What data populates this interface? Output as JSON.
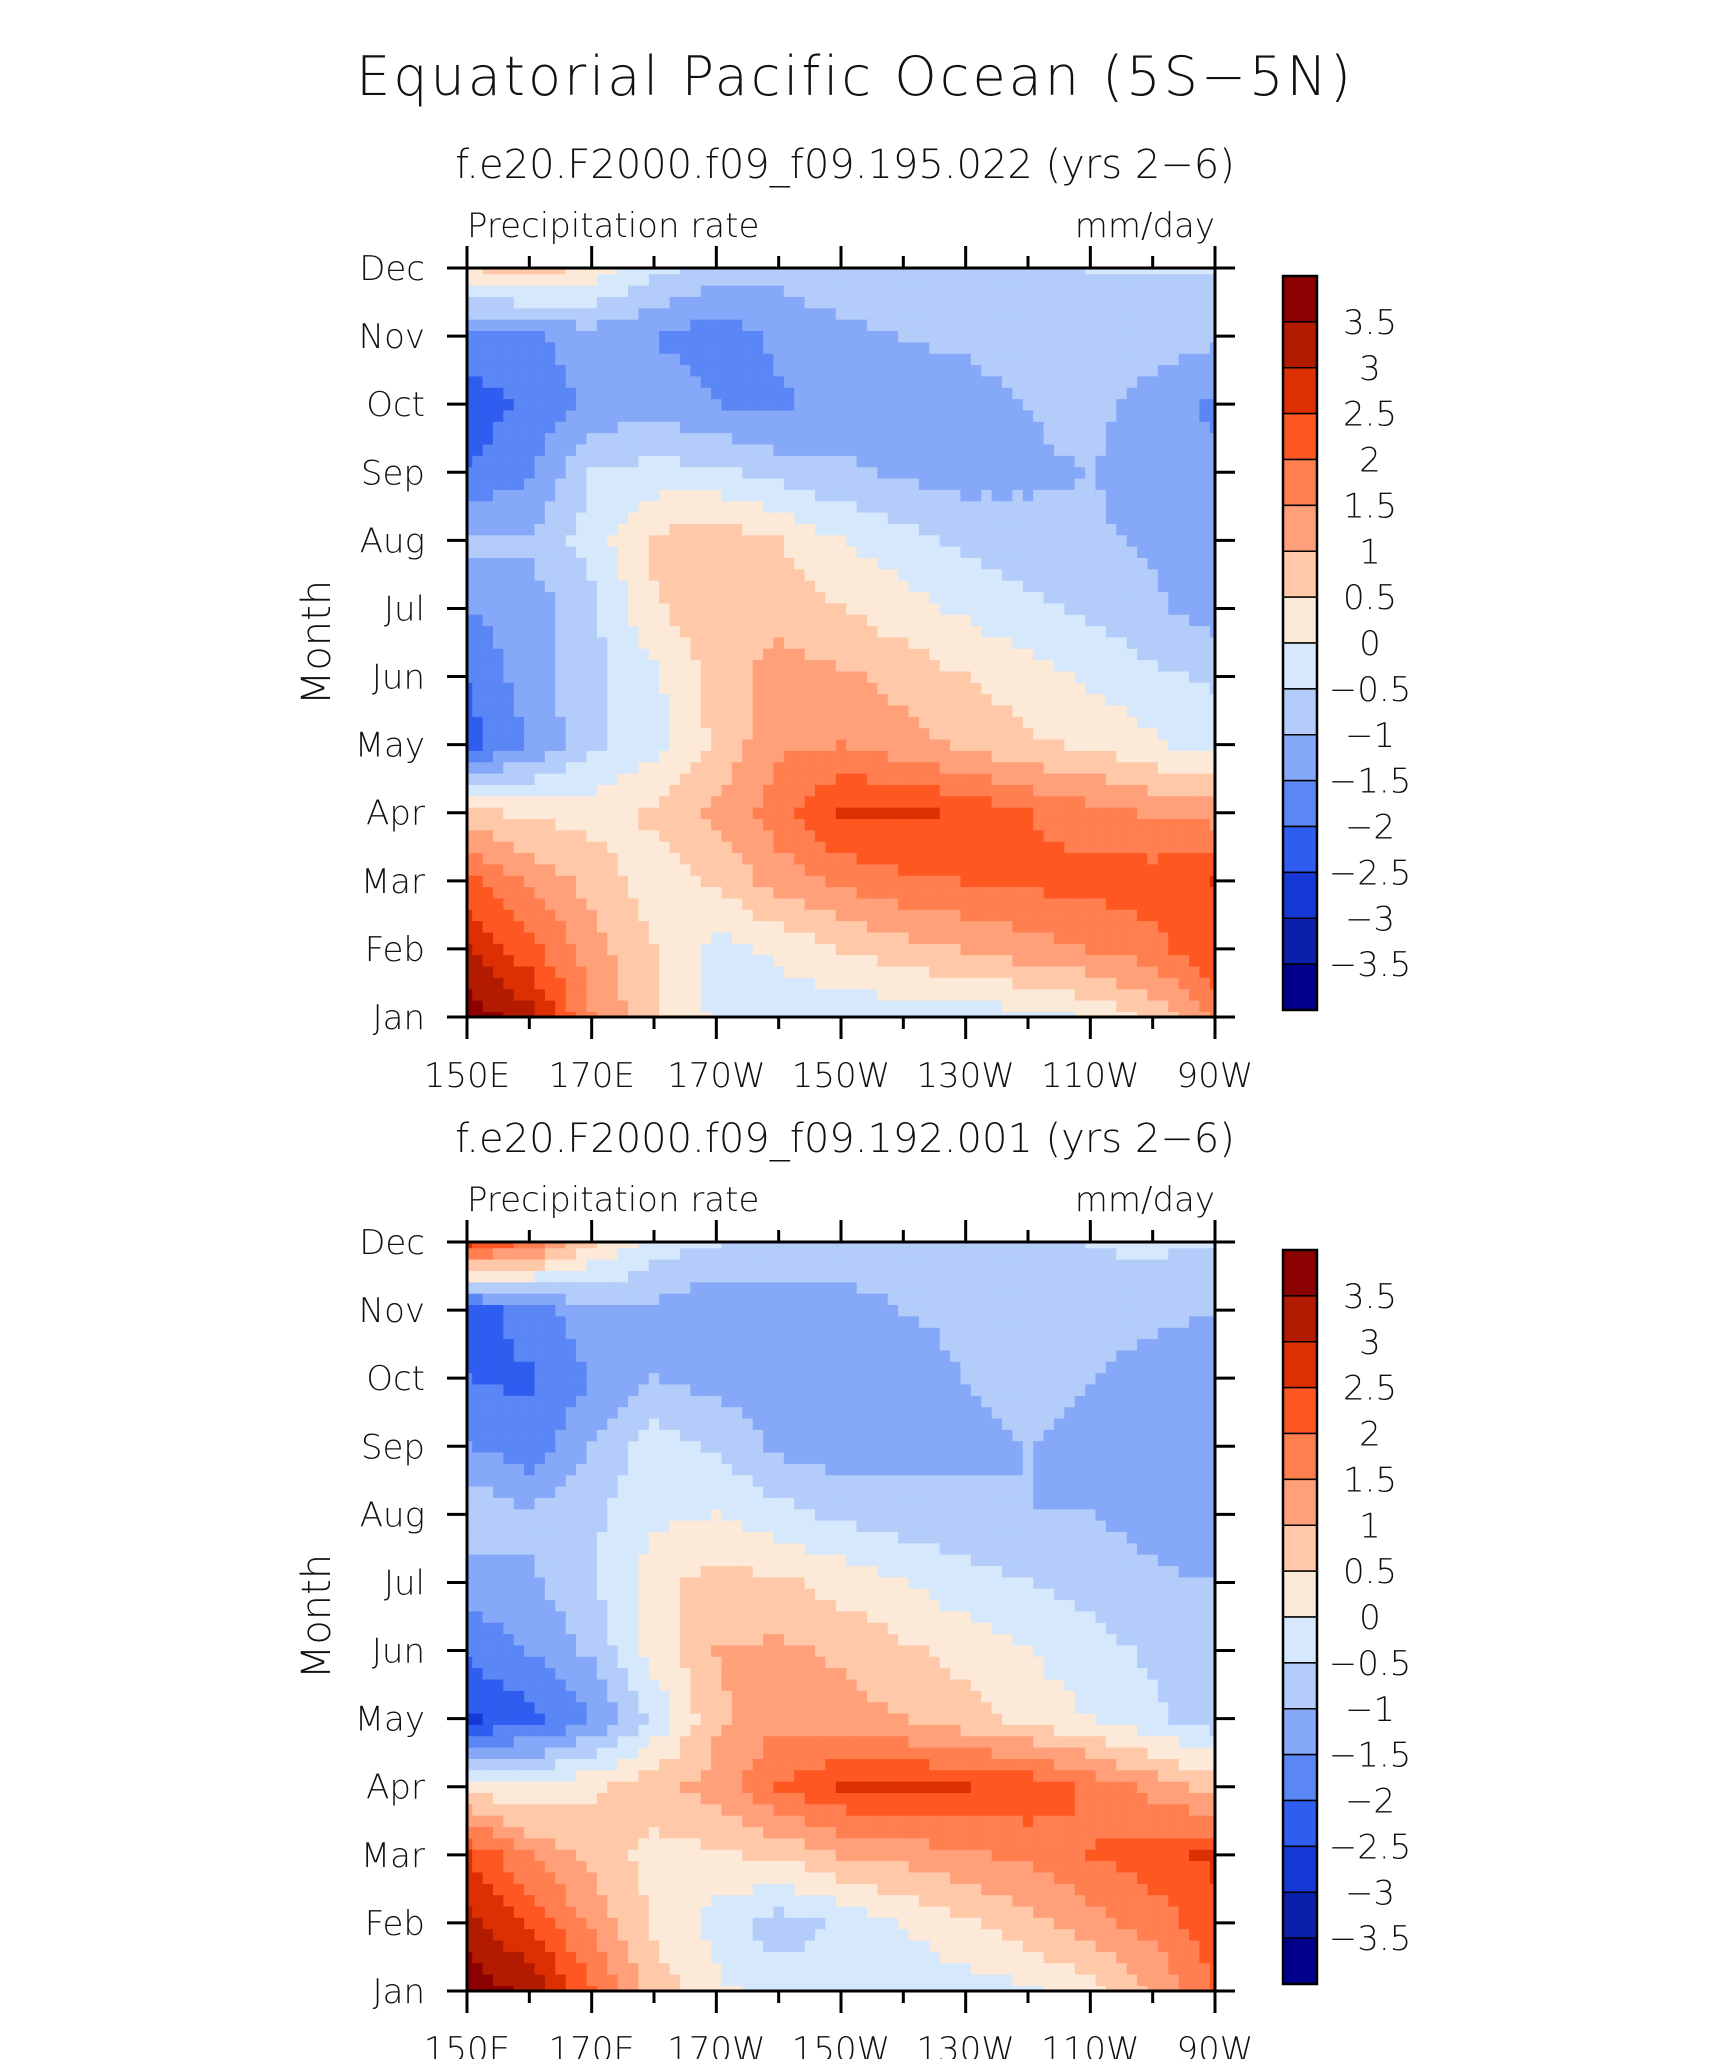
{
  "figure": {
    "title": "Equatorial Pacific Ocean (5S−5N)"
  },
  "colorbar": {
    "levels": [
      3.5,
      3,
      2.5,
      2,
      1.5,
      1,
      0.5,
      0,
      -0.5,
      -1,
      -1.5,
      -2,
      -2.5,
      -3,
      -3.5
    ],
    "labels": [
      "3.5",
      "3",
      "2.5",
      "2",
      "1.5",
      "1",
      "0.5",
      "0",
      "−0.5",
      "−1",
      "−1.5",
      "−2",
      "−2.5",
      "−3",
      "−3.5"
    ],
    "colors": [
      "#8b0000",
      "#b31b00",
      "#dc2f02",
      "#ff5722",
      "#ff7f50",
      "#ffa07a",
      "#ffc8a8",
      "#fde9d8",
      "#d6e8fb",
      "#b3ccfa",
      "#86a8f8",
      "#5b86f5",
      "#2f5df0",
      "#1638d6",
      "#0a20aa",
      "#00008b"
    ]
  },
  "chart_data": [
    {
      "type": "heatmap",
      "subtitle": "f.e20.F2000.f09_f09.195.022 (yrs 2−6)",
      "left_label": "Precipitation rate",
      "right_label": "mm/day",
      "ylabel": "Month",
      "x_ticks": [
        "150E",
        "170E",
        "170W",
        "150W",
        "130W",
        "110W",
        "90W"
      ],
      "y_ticks": [
        "Jan",
        "Feb",
        "Mar",
        "Apr",
        "May",
        "Jun",
        "Jul",
        "Aug",
        "Sep",
        "Oct",
        "Nov",
        "Dec"
      ],
      "x_range": [
        150,
        270
      ],
      "x_columns": [
        150,
        160,
        170,
        180,
        190,
        200,
        210,
        220,
        230,
        240,
        250,
        260,
        270
      ],
      "rows": [
        [
          3.8,
          3.2,
          1.5,
          0.6,
          -0.1,
          -0.3,
          -0.4,
          -0.3,
          -0.3,
          -0.2,
          0.1,
          0.6,
          1.6
        ],
        [
          3.0,
          2.2,
          1.2,
          0.5,
          -0.2,
          0.1,
          0.5,
          0.8,
          1.0,
          1.3,
          1.5,
          1.8,
          2.4
        ],
        [
          2.2,
          1.4,
          0.8,
          0.2,
          0.6,
          1.2,
          1.6,
          1.9,
          2.0,
          2.1,
          2.2,
          2.3,
          2.5
        ],
        [
          0.6,
          0.4,
          0.3,
          0.6,
          1.1,
          1.8,
          2.6,
          2.6,
          2.4,
          2.0,
          1.7,
          1.4,
          1.3
        ],
        [
          -2.2,
          -1.5,
          -0.6,
          -0.2,
          0.6,
          1.4,
          1.5,
          1.2,
          0.9,
          0.6,
          0.4,
          0.1,
          -0.2
        ],
        [
          -2.0,
          -1.2,
          -0.7,
          -0.1,
          0.7,
          1.2,
          1.1,
          0.8,
          0.5,
          0.2,
          -0.1,
          -0.4,
          -0.6
        ],
        [
          -1.5,
          -1.3,
          -0.6,
          0.4,
          0.9,
          0.8,
          0.5,
          0.2,
          -0.1,
          -0.4,
          -0.6,
          -0.9,
          -1.2
        ],
        [
          -0.8,
          -0.9,
          -0.3,
          0.6,
          0.9,
          0.5,
          0.0,
          -0.3,
          -0.6,
          -0.8,
          -0.9,
          -1.1,
          -1.3
        ],
        [
          -2.0,
          -1.6,
          -0.5,
          -0.3,
          -0.4,
          -0.7,
          -0.9,
          -1.1,
          -1.2,
          -1.1,
          -1.0,
          -1.2,
          -1.4
        ],
        [
          -2.3,
          -1.9,
          -1.4,
          -1.2,
          -1.5,
          -1.6,
          -1.3,
          -1.2,
          -1.2,
          -1.0,
          -0.8,
          -1.3,
          -1.6
        ],
        [
          -1.6,
          -1.6,
          -1.2,
          -1.5,
          -1.8,
          -1.4,
          -1.1,
          -1.0,
          -0.9,
          -0.8,
          -0.6,
          -0.7,
          -0.9
        ],
        [
          0.4,
          0.7,
          0.3,
          -0.4,
          -0.7,
          -0.8,
          -0.7,
          -0.6,
          -0.6,
          -0.6,
          -0.5,
          -0.5,
          -0.5
        ]
      ]
    },
    {
      "type": "heatmap",
      "subtitle": "f.e20.F2000.f09_f09.192.001 (yrs 2−6)",
      "left_label": "Precipitation rate",
      "right_label": "mm/day",
      "ylabel": "Month",
      "x_ticks": [
        "150E",
        "170E",
        "170W",
        "150W",
        "130W",
        "110W",
        "90W"
      ],
      "y_ticks": [
        "Jan",
        "Feb",
        "Mar",
        "Apr",
        "May",
        "Jun",
        "Jul",
        "Aug",
        "Sep",
        "Oct",
        "Nov",
        "Dec"
      ],
      "x_range": [
        150,
        270
      ],
      "x_columns": [
        150,
        160,
        170,
        180,
        190,
        200,
        210,
        220,
        230,
        240,
        250,
        260,
        270
      ],
      "rows": [
        [
          3.8,
          3.4,
          2.0,
          0.8,
          0.1,
          -0.2,
          -0.3,
          -0.3,
          -0.2,
          -0.1,
          0.3,
          1.0,
          2.0
        ],
        [
          3.2,
          2.4,
          1.4,
          0.4,
          -0.2,
          -0.8,
          -0.4,
          0.0,
          0.4,
          0.8,
          1.3,
          1.7,
          2.3
        ],
        [
          2.5,
          1.5,
          0.8,
          0.3,
          0.4,
          0.6,
          1.0,
          1.2,
          1.4,
          1.6,
          2.0,
          2.3,
          2.6
        ],
        [
          0.3,
          0.0,
          0.4,
          0.8,
          1.2,
          2.0,
          2.5,
          2.6,
          2.5,
          2.4,
          1.9,
          1.3,
          0.8
        ],
        [
          -2.6,
          -2.2,
          -1.5,
          -0.4,
          0.9,
          1.4,
          1.2,
          1.0,
          0.7,
          0.3,
          0.0,
          -0.4,
          -0.8
        ],
        [
          -1.9,
          -1.5,
          -0.9,
          0.2,
          1.0,
          1.1,
          0.9,
          0.6,
          0.3,
          0.0,
          -0.3,
          -0.6,
          -0.9
        ],
        [
          -1.2,
          -1.1,
          -0.6,
          0.3,
          0.7,
          0.6,
          0.3,
          0.0,
          -0.3,
          -0.5,
          -0.7,
          -0.9,
          -1.0
        ],
        [
          -0.6,
          -0.9,
          -0.6,
          -0.1,
          0.0,
          -0.3,
          -0.6,
          -0.8,
          -0.9,
          -1.0,
          -1.0,
          -1.2,
          -1.4
        ],
        [
          -1.5,
          -1.8,
          -1.0,
          -0.2,
          -0.6,
          -1.1,
          -1.3,
          -1.2,
          -1.1,
          -1.0,
          -1.1,
          -1.4,
          -1.5
        ],
        [
          -2.0,
          -2.1,
          -1.5,
          -1.0,
          -1.2,
          -1.3,
          -1.4,
          -1.2,
          -1.0,
          -0.9,
          -1.0,
          -1.3,
          -1.5
        ],
        [
          -2.5,
          -1.7,
          -1.2,
          -1.1,
          -1.5,
          -1.4,
          -1.3,
          -1.0,
          -0.9,
          -0.8,
          -0.7,
          -0.8,
          -1.0
        ],
        [
          2.6,
          1.8,
          0.6,
          -0.2,
          -0.5,
          -0.6,
          -0.6,
          -0.6,
          -0.6,
          -0.6,
          -0.5,
          -0.4,
          -0.5
        ]
      ]
    }
  ]
}
